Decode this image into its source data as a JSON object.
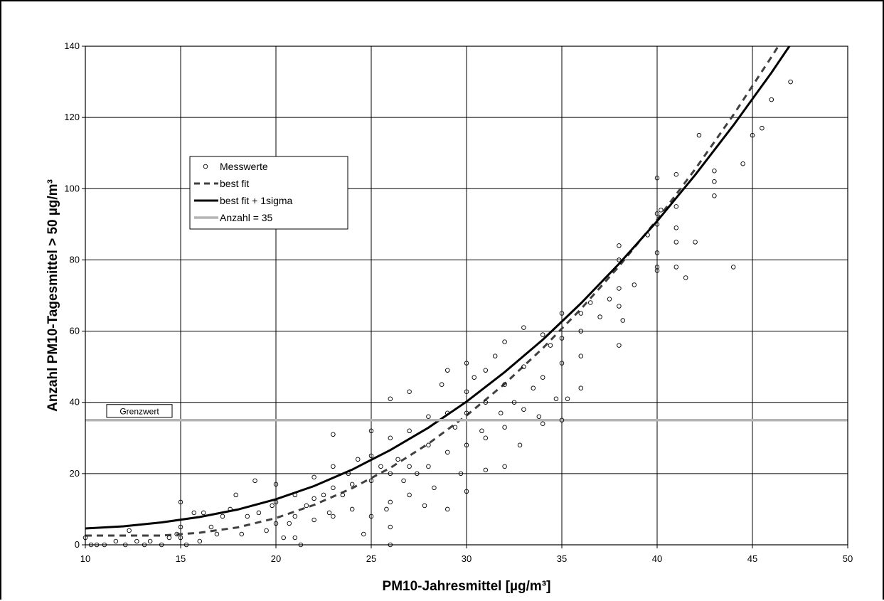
{
  "chart_data": {
    "type": "scatter",
    "xlabel": "PM10-Jahresmittel [µg/m³]",
    "ylabel": "Anzahl PM10-Tagesmittel > 50 µg/m³",
    "xlim": [
      10,
      50
    ],
    "ylim": [
      0,
      140
    ],
    "x_ticks": [
      10,
      15,
      20,
      25,
      30,
      35,
      40,
      45,
      50
    ],
    "y_ticks": [
      0,
      20,
      40,
      60,
      80,
      100,
      120,
      140
    ],
    "grid": true,
    "legend_position": "upper-left",
    "reference_line": {
      "label": "Grenzwert",
      "y": 35,
      "color": "#b4b4b4"
    },
    "series": [
      {
        "name": "Messwerte",
        "kind": "scatter",
        "marker": "open-circle",
        "color": "#000000",
        "points": [
          [
            10,
            2
          ],
          [
            10.3,
            0
          ],
          [
            10.6,
            0
          ],
          [
            11,
            0
          ],
          [
            11.6,
            1
          ],
          [
            12.1,
            0
          ],
          [
            12.3,
            4
          ],
          [
            12.7,
            1
          ],
          [
            13.1,
            0
          ],
          [
            13.4,
            1
          ],
          [
            14,
            0
          ],
          [
            14.4,
            2
          ],
          [
            14.8,
            3
          ],
          [
            15,
            12
          ],
          [
            15,
            5
          ],
          [
            15,
            2
          ],
          [
            15.3,
            0
          ],
          [
            15.7,
            9
          ],
          [
            16,
            1
          ],
          [
            16.2,
            9
          ],
          [
            16.6,
            5
          ],
          [
            16.9,
            3
          ],
          [
            17.2,
            8
          ],
          [
            17.6,
            10
          ],
          [
            17.9,
            14
          ],
          [
            18.2,
            3
          ],
          [
            18.5,
            8
          ],
          [
            18.9,
            18
          ],
          [
            19.1,
            9
          ],
          [
            19.5,
            4
          ],
          [
            19.8,
            11
          ],
          [
            20,
            17
          ],
          [
            20,
            12
          ],
          [
            20,
            6
          ],
          [
            20.4,
            2
          ],
          [
            20.7,
            6
          ],
          [
            21,
            14
          ],
          [
            21,
            8
          ],
          [
            21,
            2
          ],
          [
            21.3,
            0
          ],
          [
            21.6,
            11
          ],
          [
            22,
            19
          ],
          [
            22,
            13
          ],
          [
            22,
            7
          ],
          [
            22.5,
            14
          ],
          [
            22.8,
            9
          ],
          [
            23,
            31
          ],
          [
            23,
            22
          ],
          [
            23,
            16
          ],
          [
            23,
            8
          ],
          [
            23.5,
            14
          ],
          [
            23.8,
            20
          ],
          [
            24,
            17
          ],
          [
            24,
            10
          ],
          [
            24.3,
            24
          ],
          [
            24.6,
            3
          ],
          [
            25,
            32
          ],
          [
            25,
            25
          ],
          [
            25,
            18
          ],
          [
            25,
            8
          ],
          [
            25.5,
            22
          ],
          [
            25.8,
            10
          ],
          [
            26,
            41
          ],
          [
            26,
            30
          ],
          [
            26,
            20
          ],
          [
            26,
            12
          ],
          [
            26,
            5
          ],
          [
            26,
            0
          ],
          [
            26.4,
            24
          ],
          [
            26.7,
            18
          ],
          [
            27,
            43
          ],
          [
            27,
            32
          ],
          [
            27,
            22
          ],
          [
            27,
            14
          ],
          [
            27.4,
            20
          ],
          [
            27.8,
            11
          ],
          [
            28,
            36
          ],
          [
            28,
            28
          ],
          [
            28,
            22
          ],
          [
            28.3,
            16
          ],
          [
            28.7,
            45
          ],
          [
            29,
            49
          ],
          [
            29,
            37
          ],
          [
            29,
            26
          ],
          [
            29,
            10
          ],
          [
            29.4,
            33
          ],
          [
            29.7,
            20
          ],
          [
            30,
            51
          ],
          [
            30,
            43
          ],
          [
            30,
            37
          ],
          [
            30,
            28
          ],
          [
            30,
            15
          ],
          [
            30.4,
            47
          ],
          [
            30.8,
            32
          ],
          [
            31,
            49
          ],
          [
            31,
            40
          ],
          [
            31,
            30
          ],
          [
            31,
            21
          ],
          [
            31.5,
            53
          ],
          [
            31.8,
            37
          ],
          [
            32,
            57
          ],
          [
            32,
            45
          ],
          [
            32,
            33
          ],
          [
            32,
            22
          ],
          [
            32.5,
            40
          ],
          [
            32.8,
            28
          ],
          [
            33,
            61
          ],
          [
            33,
            50
          ],
          [
            33,
            38
          ],
          [
            33.5,
            44
          ],
          [
            33.8,
            36
          ],
          [
            34,
            59
          ],
          [
            34,
            47
          ],
          [
            34,
            34
          ],
          [
            34.4,
            56
          ],
          [
            34.7,
            41
          ],
          [
            35,
            65
          ],
          [
            35,
            58
          ],
          [
            35,
            51
          ],
          [
            35,
            35
          ],
          [
            35.3,
            41
          ],
          [
            36,
            65
          ],
          [
            36,
            60
          ],
          [
            36,
            53
          ],
          [
            36,
            44
          ],
          [
            36.5,
            68
          ],
          [
            37,
            64
          ],
          [
            37.5,
            69
          ],
          [
            38,
            84
          ],
          [
            38,
            80
          ],
          [
            38,
            72
          ],
          [
            38,
            67
          ],
          [
            38,
            56
          ],
          [
            38.2,
            63
          ],
          [
            38.8,
            73
          ],
          [
            39.5,
            87
          ],
          [
            40,
            103
          ],
          [
            40,
            93
          ],
          [
            40,
            90
          ],
          [
            40,
            82
          ],
          [
            40,
            78
          ],
          [
            40,
            77
          ],
          [
            40.2,
            94
          ],
          [
            41,
            104
          ],
          [
            41,
            95
          ],
          [
            41,
            89
          ],
          [
            41,
            85
          ],
          [
            41,
            78
          ],
          [
            41.5,
            75
          ],
          [
            42,
            85
          ],
          [
            42.2,
            115
          ],
          [
            43,
            105
          ],
          [
            43,
            102
          ],
          [
            43,
            98
          ],
          [
            44,
            78
          ],
          [
            44.5,
            107
          ],
          [
            45,
            115
          ],
          [
            45.5,
            117
          ],
          [
            46,
            125
          ],
          [
            47,
            130
          ]
        ]
      },
      {
        "name": "best fit",
        "kind": "line",
        "style": "dashed",
        "color": "#404040",
        "points": [
          [
            10,
            2.6
          ],
          [
            12,
            2.6
          ],
          [
            14,
            2.6
          ],
          [
            16,
            3.4
          ],
          [
            18,
            4.9
          ],
          [
            20,
            7.5
          ],
          [
            22,
            11.2
          ],
          [
            24,
            15.9
          ],
          [
            26,
            21.6
          ],
          [
            28,
            28.4
          ],
          [
            30,
            36.3
          ],
          [
            32,
            45.2
          ],
          [
            34,
            55.2
          ],
          [
            36,
            66.2
          ],
          [
            38,
            78.2
          ],
          [
            40,
            91.3
          ],
          [
            42,
            105.5
          ],
          [
            44,
            120.7
          ],
          [
            46,
            137
          ],
          [
            48,
            154
          ]
        ]
      },
      {
        "name": "best fit + 1sigma",
        "kind": "line",
        "style": "solid",
        "color": "#000000",
        "points": [
          [
            10,
            4.6
          ],
          [
            12,
            5.2
          ],
          [
            14,
            6.3
          ],
          [
            16,
            7.8
          ],
          [
            18,
            9.9
          ],
          [
            20,
            12.8
          ],
          [
            22,
            16.5
          ],
          [
            24,
            21.1
          ],
          [
            26,
            26.6
          ],
          [
            28,
            32.9
          ],
          [
            30,
            40.2
          ],
          [
            32,
            48.5
          ],
          [
            34,
            57.6
          ],
          [
            36,
            67.8
          ],
          [
            38,
            78.9
          ],
          [
            40,
            90.9
          ],
          [
            42,
            103.9
          ],
          [
            44,
            117.8
          ],
          [
            46,
            132.6
          ],
          [
            48,
            148.4
          ],
          [
            50,
            165
          ]
        ]
      },
      {
        "name": "Anzahl = 35",
        "kind": "hline",
        "style": "solid",
        "color": "#b4b4b4",
        "y": 35
      }
    ]
  }
}
